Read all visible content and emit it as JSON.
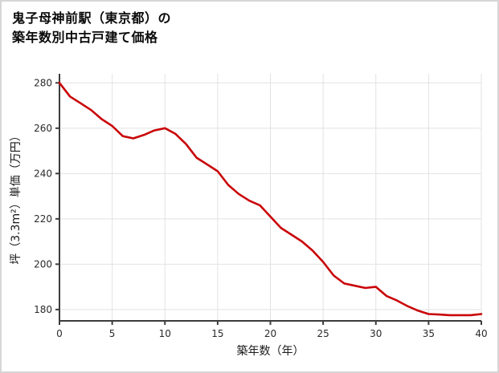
{
  "title_lines": [
    "鬼子母神前駅（東京都）の",
    "築年数別中古戸建て価格"
  ],
  "chart_data": {
    "type": "line",
    "title": "鬼子母神前駅（東京都）の築年数別中古戸建て価格",
    "xlabel": "築年数（年）",
    "ylabel": "坪（3.3m²）単価（万円）",
    "x": [
      0,
      1,
      2,
      3,
      4,
      5,
      6,
      7,
      8,
      9,
      10,
      11,
      12,
      13,
      14,
      15,
      16,
      17,
      18,
      19,
      20,
      21,
      22,
      23,
      24,
      25,
      26,
      27,
      28,
      29,
      30,
      31,
      32,
      33,
      34,
      35,
      36,
      37,
      38,
      39,
      40
    ],
    "values": [
      280,
      274,
      271,
      268,
      264,
      261,
      256.5,
      255.5,
      257,
      259,
      260,
      257.5,
      253,
      247,
      244,
      241,
      235,
      231,
      228,
      226,
      221,
      216,
      213,
      210,
      206,
      201,
      195,
      191.5,
      190.5,
      189.5,
      190,
      186,
      184,
      181.5,
      179.5,
      178,
      177.8,
      177.5,
      177.5,
      177.5,
      178
    ],
    "series_name": "中古戸建て価格",
    "xlim": [
      0,
      40
    ],
    "ylim": [
      175,
      284
    ],
    "xticks": [
      0,
      5,
      10,
      15,
      20,
      25,
      30,
      35,
      40
    ],
    "yticks": [
      180,
      200,
      220,
      240,
      260,
      280
    ],
    "grid": true,
    "legend": "none",
    "line_color": "#c90408",
    "grid_color": "#e2e2e2",
    "axis_color": "#3c3c3c",
    "tick_label_color": "#2a2a2a"
  }
}
